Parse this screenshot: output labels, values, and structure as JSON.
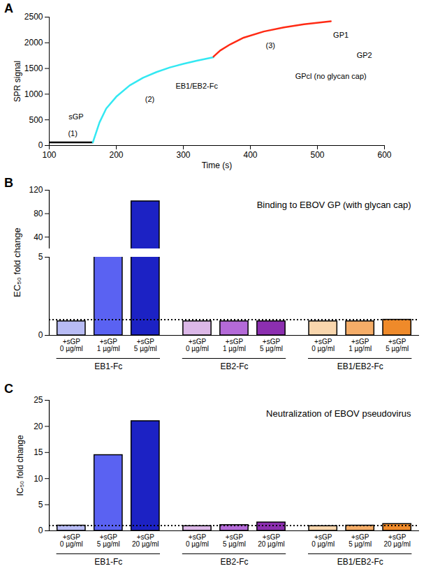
{
  "chart_data": [
    {
      "type": "line",
      "panel": "A",
      "xlabel": "Time (s)",
      "ylabel": "SPR signal",
      "xlim": [
        100,
        600
      ],
      "xticks": [
        100,
        200,
        300,
        400,
        500,
        600
      ],
      "ylim": [
        0,
        2500
      ],
      "yticks": [
        0,
        500,
        1000,
        1500,
        2000,
        2500
      ],
      "series": [
        {
          "color": "#000000",
          "x": [
            100,
            165
          ],
          "values": [
            60,
            60
          ]
        },
        {
          "color": "#33e8f2",
          "x": [
            165,
            175,
            185,
            200,
            220,
            240,
            260,
            280,
            300,
            320,
            345
          ],
          "values": [
            60,
            450,
            720,
            950,
            1170,
            1320,
            1430,
            1520,
            1590,
            1650,
            1720
          ]
        },
        {
          "color": "#ff2a14",
          "x": [
            345,
            355,
            370,
            390,
            420,
            450,
            480,
            520
          ],
          "values": [
            1730,
            1850,
            1970,
            2100,
            2220,
            2300,
            2360,
            2420
          ]
        }
      ],
      "annotations": [
        "(1)",
        "sGP",
        "(2)",
        "EB1/EB2-Fc",
        "(3)",
        "GP1",
        "GP2",
        "GPcl (no glycan cap)"
      ]
    },
    {
      "type": "bar",
      "panel": "B",
      "title": "Binding to EBOV GP (with glycan cap)",
      "ylabel": "EC₅₀ fold change",
      "segments": [
        {
          "ylim": [
            20,
            120
          ],
          "yticks": [
            40,
            80,
            120
          ]
        },
        {
          "ylim": [
            0,
            5
          ],
          "yticks": [
            0,
            5
          ]
        }
      ],
      "reference": {
        "value": 1,
        "line_style": "dotted"
      },
      "groups": [
        {
          "name": "EB1-Fc",
          "categories": [
            "+sGP\n0 µg/ml",
            "+sGP\n1 µg/ml",
            "+sGP\n5 µg/ml"
          ],
          "values": [
            0.9,
            10,
            101
          ],
          "colors": [
            "#b8bcf5",
            "#5a62f2",
            "#1c22c4"
          ]
        },
        {
          "name": "EB2-Fc",
          "categories": [
            "+sGP\n0 µg/ml",
            "+sGP\n1 µg/ml",
            "+sGP\n5 µg/ml"
          ],
          "values": [
            0.9,
            0.9,
            0.9
          ],
          "colors": [
            "#dcb8e8",
            "#b46ad8",
            "#8c2fb0"
          ]
        },
        {
          "name": "EB1/EB2-Fc",
          "categories": [
            "+sGP\n0 µg/ml",
            "+sGP\n1 µg/ml",
            "+sGP\n5 µg/ml"
          ],
          "values": [
            0.9,
            0.9,
            1.0
          ],
          "colors": [
            "#f8d6ad",
            "#f5ad68",
            "#ef8a2a"
          ]
        }
      ]
    },
    {
      "type": "bar",
      "panel": "C",
      "title": "Neutralization of EBOV pseudovirus",
      "ylabel": "IC₅₀ fold change",
      "ylim": [
        0,
        25
      ],
      "yticks": [
        0,
        5,
        10,
        15,
        20,
        25
      ],
      "reference": {
        "value": 1,
        "line_style": "dotted"
      },
      "groups": [
        {
          "name": "EB1-Fc",
          "categories": [
            "+sGP\n0 µg/ml",
            "+sGP\n5 µg/ml",
            "+sGP\n20 µg/ml"
          ],
          "values": [
            1.0,
            14.5,
            21
          ],
          "colors": [
            "#b8bcf5",
            "#5a62f2",
            "#1c22c4"
          ]
        },
        {
          "name": "EB2-Fc",
          "categories": [
            "+sGP\n0 µg/ml",
            "+sGP\n5 µg/ml",
            "+sGP\n20 µg/ml"
          ],
          "values": [
            0.9,
            1.1,
            1.6
          ],
          "colors": [
            "#dcb8e8",
            "#b46ad8",
            "#8c2fb0"
          ]
        },
        {
          "name": "EB1/EB2-Fc",
          "categories": [
            "+sGP\n0 µg/ml",
            "+sGP\n5 µg/ml",
            "+sGP\n20 µg/ml"
          ],
          "values": [
            0.9,
            1.0,
            1.3
          ],
          "colors": [
            "#f8d6ad",
            "#f5ad68",
            "#ef8a2a"
          ]
        }
      ]
    }
  ]
}
